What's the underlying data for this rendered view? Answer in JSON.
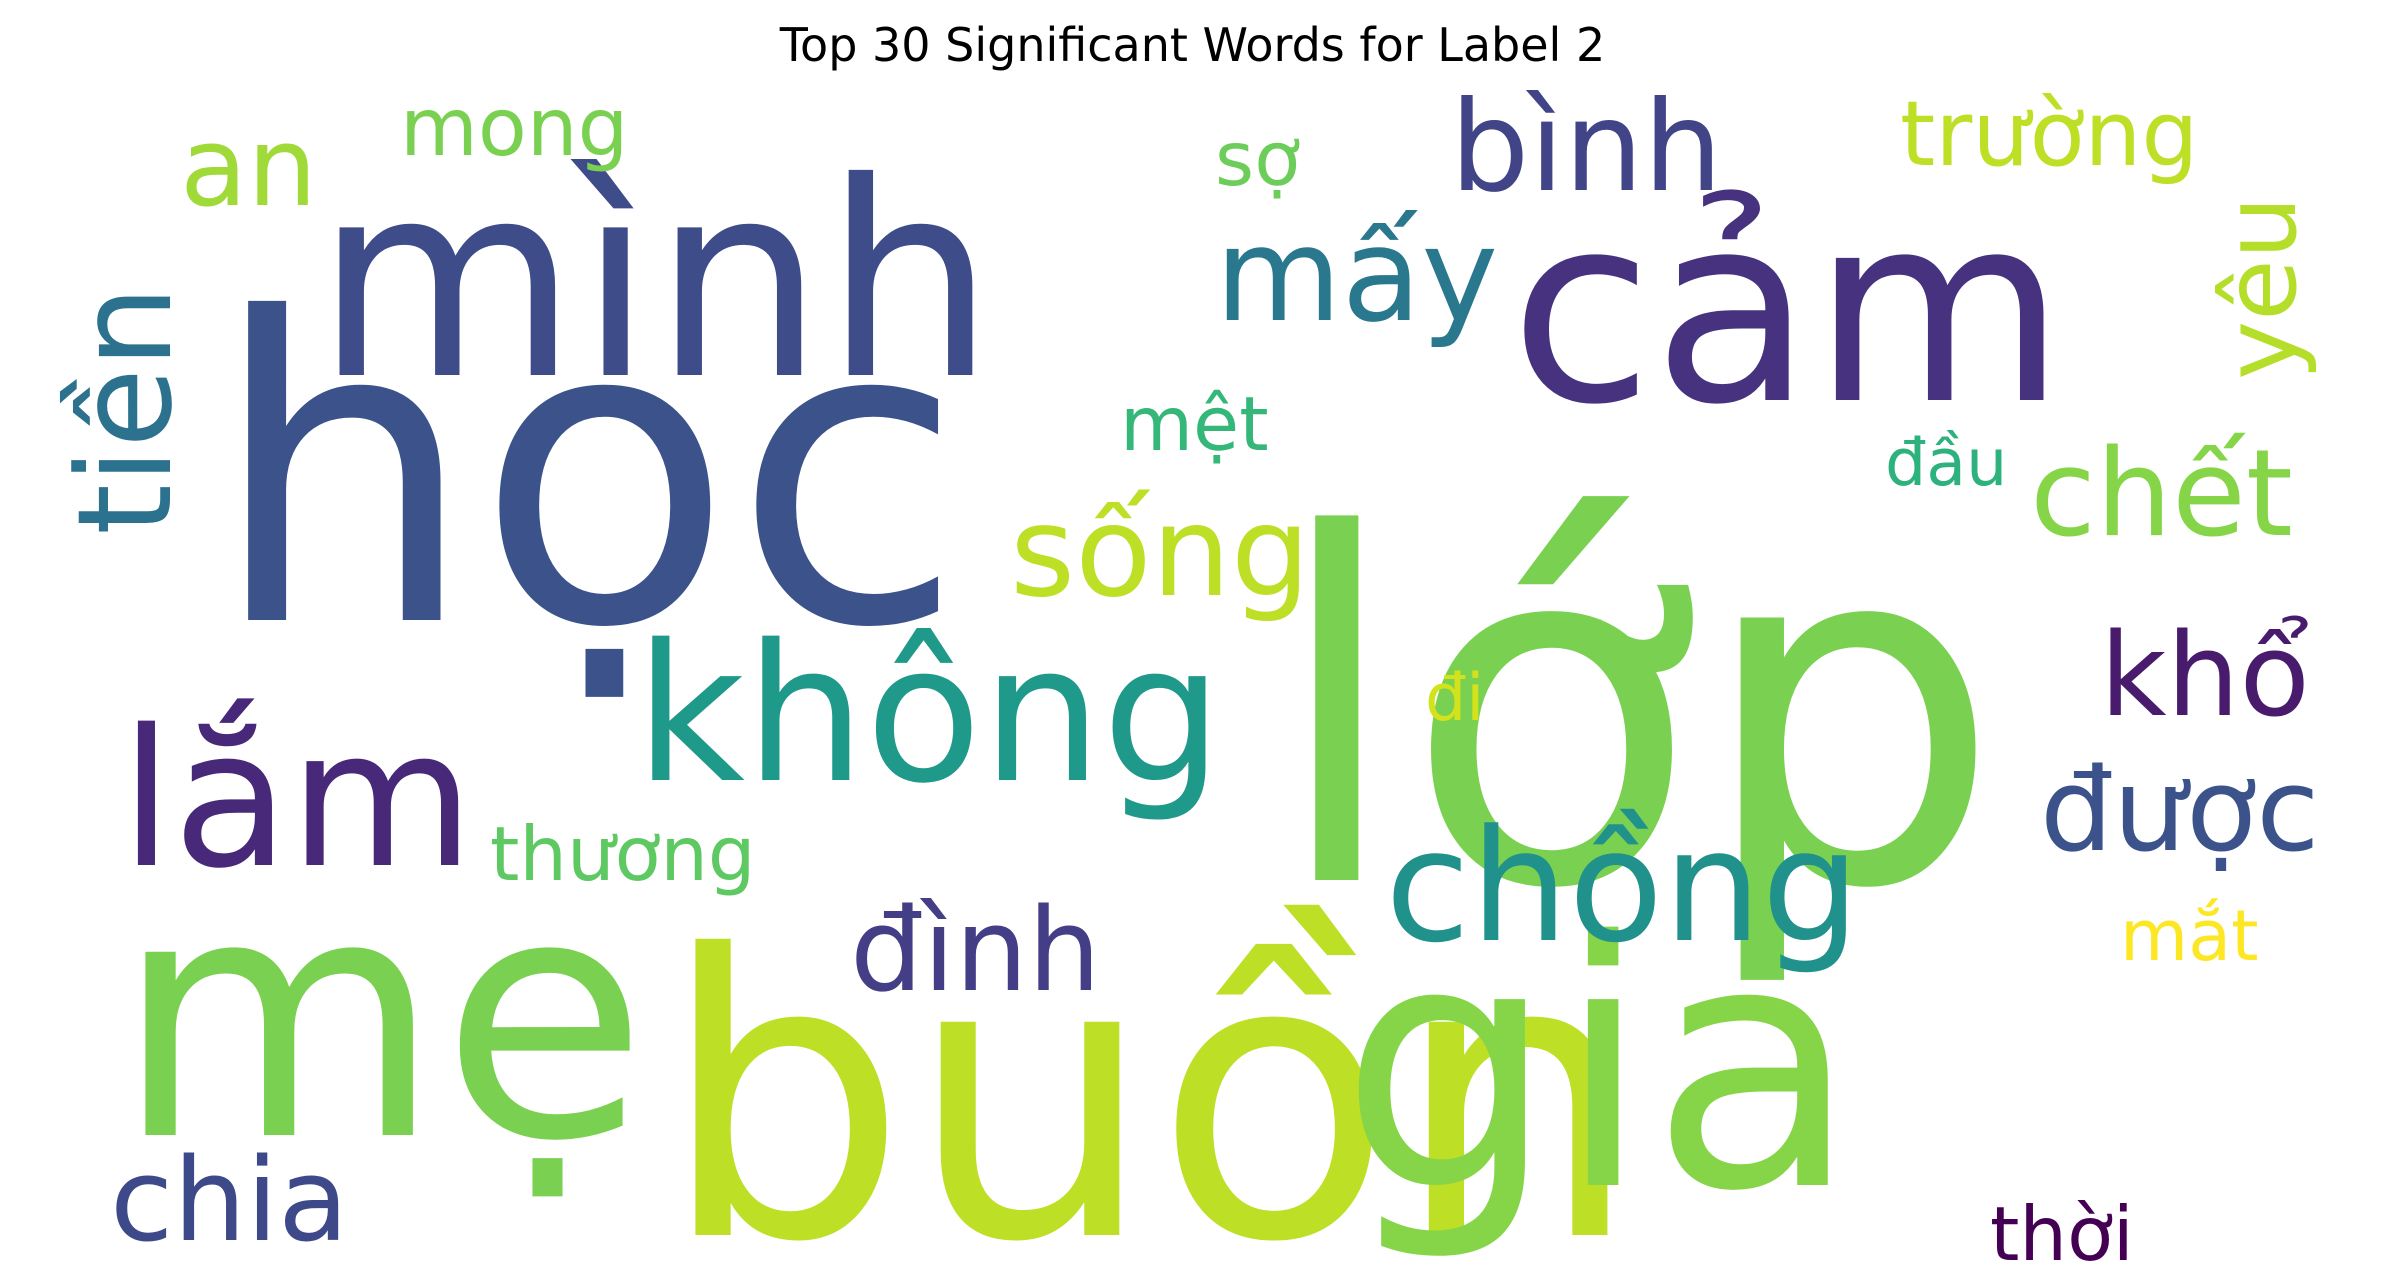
{
  "title": "Top 30 Significant Words for Label 2",
  "words": [
    {
      "text": "học",
      "color": "#3b528b"
    },
    {
      "text": "mình",
      "color": "#3e4c8a"
    },
    {
      "text": "cảm",
      "color": "#46327e"
    },
    {
      "text": "lớp",
      "color": "#7ad151"
    },
    {
      "text": "mẹ",
      "color": "#7ad151"
    },
    {
      "text": "buồn",
      "color": "#bddf26"
    },
    {
      "text": "gia",
      "color": "#86d549"
    },
    {
      "text": "không",
      "color": "#1f9a8a"
    },
    {
      "text": "lắm",
      "color": "#482878"
    },
    {
      "text": "chồng",
      "color": "#21918c"
    },
    {
      "text": "sống",
      "color": "#bddf26"
    },
    {
      "text": "mấy",
      "color": "#2a788e"
    },
    {
      "text": "bình",
      "color": "#414487"
    },
    {
      "text": "an",
      "color": "#a0da39"
    },
    {
      "text": "tiền",
      "color": "#2c728e"
    },
    {
      "text": "mong",
      "color": "#7ad151"
    },
    {
      "text": "sợ",
      "color": "#6ccd5a"
    },
    {
      "text": "trường",
      "color": "#bddf26"
    },
    {
      "text": "yêu",
      "color": "#b5de2b"
    },
    {
      "text": "mệt",
      "color": "#35b779"
    },
    {
      "text": "đầu",
      "color": "#2db27d"
    },
    {
      "text": "chết",
      "color": "#86d549"
    },
    {
      "text": "khổ",
      "color": "#481b6d"
    },
    {
      "text": "được",
      "color": "#3b528b"
    },
    {
      "text": "đi",
      "color": "#d2e21b"
    },
    {
      "text": "thương",
      "color": "#5ec962"
    },
    {
      "text": "đình",
      "color": "#433e85"
    },
    {
      "text": "mắt",
      "color": "#fde725"
    },
    {
      "text": "chia",
      "color": "#3e4989"
    },
    {
      "text": "thời",
      "color": "#440154"
    }
  ]
}
